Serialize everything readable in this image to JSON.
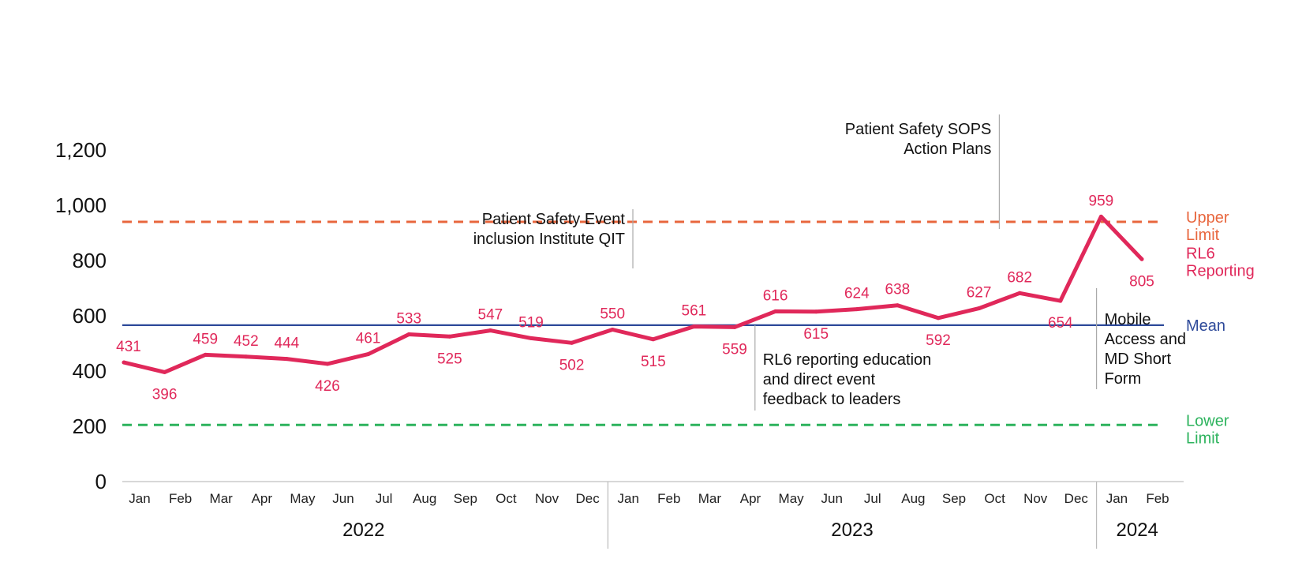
{
  "chart_data": {
    "type": "line",
    "x": [
      "Jan",
      "Feb",
      "Mar",
      "Apr",
      "May",
      "Jun",
      "Jul",
      "Aug",
      "Sep",
      "Oct",
      "Nov",
      "Dec",
      "Jan",
      "Feb",
      "Mar",
      "Apr",
      "May",
      "Jun",
      "Jul",
      "Aug",
      "Sep",
      "Oct",
      "Nov",
      "Dec",
      "Jan",
      "Feb"
    ],
    "years": [
      {
        "label": "2022",
        "start": 0,
        "end": 11
      },
      {
        "label": "2023",
        "start": 12,
        "end": 23
      },
      {
        "label": "2024",
        "start": 24,
        "end": 25
      }
    ],
    "series": [
      {
        "name": "RL6 Reporting",
        "color": "#e0285a",
        "values": [
          431,
          396,
          459,
          452,
          444,
          426,
          461,
          533,
          525,
          547,
          519,
          502,
          550,
          515,
          561,
          559,
          616,
          615,
          624,
          638,
          592,
          627,
          682,
          654,
          959,
          805
        ]
      }
    ],
    "ylim": [
      0,
      1200
    ],
    "yticks": [
      "0",
      "200",
      "400",
      "600",
      "800",
      "1,000",
      "1,200"
    ],
    "reference_lines": [
      {
        "key": "upper",
        "label_lines": [
          "Upper",
          "Limit"
        ],
        "value": 940,
        "color": "#e8663d",
        "style": "dashed"
      },
      {
        "key": "mean",
        "label_lines": [
          "Mean"
        ],
        "value": 566,
        "color": "#2e4a9a",
        "style": "solid"
      },
      {
        "key": "lower",
        "label_lines": [
          "Lower",
          "Limit"
        ],
        "value": 205,
        "color": "#2db35d",
        "style": "dashed"
      }
    ],
    "series_label_lines": [
      "RL6",
      "Reporting"
    ],
    "annotations": [
      {
        "lines": [
          "Patient Safety Event",
          "inclusion Institute QIT"
        ],
        "index": 12,
        "align": "end"
      },
      {
        "lines": [
          "Patient Safety SOPS",
          "Action Plans"
        ],
        "index": 21,
        "align": "end"
      },
      {
        "lines": [
          "RL6 reporting education",
          "and direct event",
          "feedback to leaders"
        ],
        "index": 15,
        "align": "start"
      },
      {
        "lines": [
          "Mobile",
          "Access and",
          "MD Short",
          "Form"
        ],
        "index": 23,
        "align": "start"
      }
    ],
    "grid": false,
    "legend": "right, inline"
  }
}
